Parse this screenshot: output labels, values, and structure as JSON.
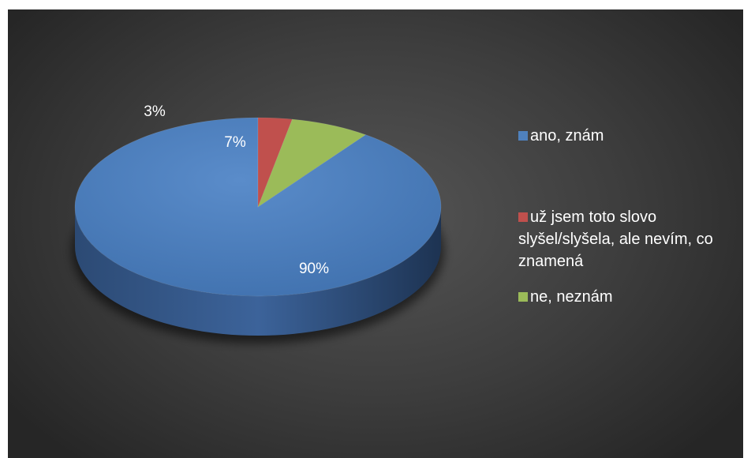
{
  "chart_data": {
    "type": "pie",
    "title": "",
    "categories": [
      "ano, znám",
      "už jsem toto slovo slyšel/slyšela, ale nevím, co znamená",
      "ne, neznám"
    ],
    "values": [
      90,
      3,
      7
    ],
    "labels": [
      "90%",
      "3%",
      "7%"
    ],
    "colors": [
      "#4f81bd",
      "#c0504d",
      "#9bbb59"
    ],
    "legend_position": "right",
    "style": "3d"
  },
  "legend": {
    "items": [
      {
        "label": "ano, znám",
        "color": "#4f81bd"
      },
      {
        "label": "už jsem toto slovo slyšel/slyšela, ale nevím, co znamená",
        "color": "#c0504d"
      },
      {
        "label": "ne, neznám",
        "color": "#9bbb59"
      }
    ]
  }
}
